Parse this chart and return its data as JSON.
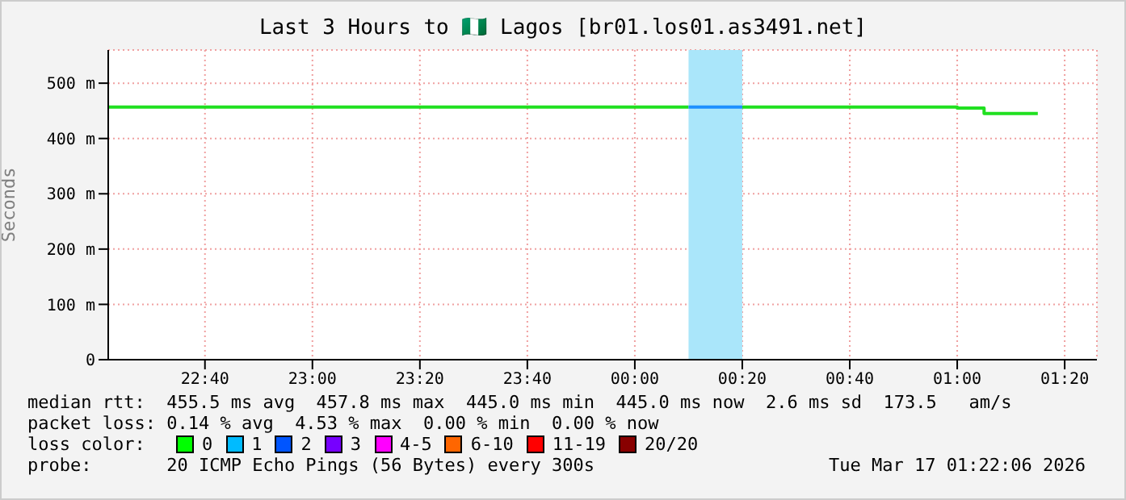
{
  "chart_data": {
    "type": "step",
    "title": "Last 3 Hours to 🇳🇬 Lagos [br01.los01.as3491.net]",
    "ylabel": "Seconds",
    "xlim": [
      "2026-03-16T22:22",
      "2026-03-17T01:26"
    ],
    "xticks": [
      {
        "value": "2026-03-16T22:40",
        "label": "22:40"
      },
      {
        "value": "2026-03-16T23:00",
        "label": "23:00"
      },
      {
        "value": "2026-03-16T23:20",
        "label": "23:20"
      },
      {
        "value": "2026-03-16T23:40",
        "label": "23:40"
      },
      {
        "value": "2026-03-17T00:00",
        "label": "00:00"
      },
      {
        "value": "2026-03-17T00:20",
        "label": "00:20"
      },
      {
        "value": "2026-03-17T00:40",
        "label": "00:40"
      },
      {
        "value": "2026-03-17T01:00",
        "label": "01:00"
      },
      {
        "value": "2026-03-17T01:20",
        "label": "01:20"
      }
    ],
    "ylim": [
      0,
      560
    ],
    "yticks": [
      {
        "value": 0,
        "label": "0"
      },
      {
        "value": 100,
        "label": "100 m"
      },
      {
        "value": 200,
        "label": "200 m"
      },
      {
        "value": 300,
        "label": "300 m"
      },
      {
        "value": 400,
        "label": "400 m"
      },
      {
        "value": 500,
        "label": "500 m"
      }
    ],
    "grid": true,
    "series": [
      {
        "color": "#20e020",
        "x": [
          "2026-03-16T22:22",
          "2026-03-17T00:10",
          "2026-03-17T00:15",
          "2026-03-17T00:20",
          "2026-03-17T01:00",
          "2026-03-17T01:05",
          "2026-03-17T01:15"
        ],
        "values": [
          457,
          457,
          null,
          457,
          455,
          445,
          445
        ]
      },
      {
        "color": "#1e90ff",
        "x": [
          "2026-03-17T00:10",
          "2026-03-17T00:20"
        ],
        "values": [
          457,
          457
        ]
      }
    ],
    "bands": [
      {
        "axis": "x",
        "from": "2026-03-17T00:10",
        "to": "2026-03-17T00:20",
        "color": "#aae6fa"
      }
    ],
    "annotations": [
      "median rtt:  455.5 ms avg  457.8 ms max  445.0 ms min  445.0 ms now  2.6 ms sd  173.5   am/s",
      "packet loss: 0.14 % avg  4.53 % max  0.00 % min  0.00 % now",
      "loss color:",
      "0",
      "1",
      "2",
      "3",
      "4-5",
      "6-10",
      "11-19",
      "20/20",
      "probe:       20 ICMP Echo Pings (56 Bytes) every 300s",
      "Tue Mar 17 01:22:06 2026"
    ]
  }
}
